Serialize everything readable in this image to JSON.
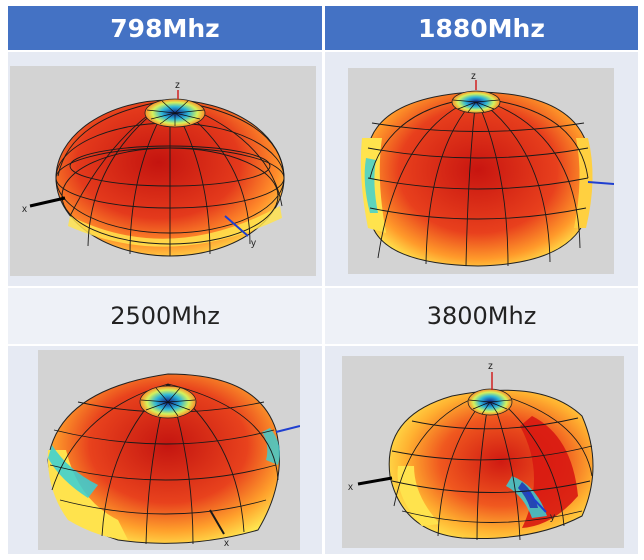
{
  "headers": [
    "798Mhz",
    "1880Mhz"
  ],
  "subheaders": [
    "2500Mhz",
    "3800Mhz"
  ],
  "plots": [
    {
      "frequency": "798Mhz",
      "axes": [
        "z",
        "x",
        "y"
      ]
    },
    {
      "frequency": "1880Mhz",
      "axes": [
        "z"
      ]
    },
    {
      "frequency": "2500Mhz",
      "axes": [
        "x"
      ]
    },
    {
      "frequency": "3800Mhz",
      "axes": [
        "z",
        "x",
        "y"
      ]
    }
  ],
  "colors": {
    "header_bg": "#4472c4",
    "header_text": "#ffffff",
    "cell_bg": "#e6eaf3",
    "subheader_bg": "#eef1f7",
    "plot_bg": "#d3d3d3",
    "pattern_red": "#d9261a",
    "pattern_yellow": "#ffe34d",
    "pattern_cyan": "#35d0d8"
  }
}
